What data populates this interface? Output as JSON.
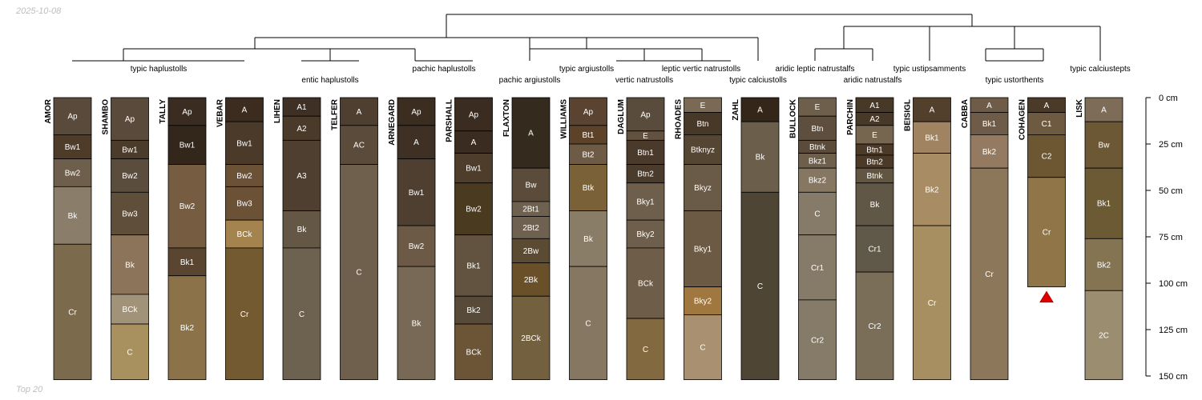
{
  "date_label": "2025-10-08",
  "footer_label": "Top 20",
  "chart_data": {
    "type": "soil-profile-sketch",
    "depth_unit": "cm",
    "depth_range": [
      0,
      150
    ],
    "axis_ticks": [
      {
        "depth": 0,
        "label": "0 cm"
      },
      {
        "depth": 25,
        "label": "25 cm"
      },
      {
        "depth": 50,
        "label": "50 cm"
      },
      {
        "depth": 75,
        "label": "75 cm"
      },
      {
        "depth": 100,
        "label": "100 cm"
      },
      {
        "depth": 125,
        "label": "125 cm"
      },
      {
        "depth": 150,
        "label": "150 cm"
      }
    ],
    "taxa": [
      {
        "label": "typic haplustolls",
        "span": [
          0,
          3
        ]
      },
      {
        "label": "entic haplustolls",
        "span": [
          4,
          5
        ]
      },
      {
        "label": "pachic haplustolls",
        "span": [
          6,
          7
        ]
      },
      {
        "label": "pachic argiustolls",
        "span": [
          8,
          8
        ]
      },
      {
        "label": "typic argiustolls",
        "span": [
          9,
          9
        ]
      },
      {
        "label": "vertic natrustolls",
        "span": [
          10,
          10
        ]
      },
      {
        "label": "leptic vertic natrustolls",
        "span": [
          11,
          11
        ]
      },
      {
        "label": "typic calciustolls",
        "span": [
          12,
          12
        ]
      },
      {
        "label": "aridic leptic natrustalfs",
        "span": [
          13,
          13
        ]
      },
      {
        "label": "aridic natrustalfs",
        "span": [
          14,
          14
        ]
      },
      {
        "label": "typic ustipsamments",
        "span": [
          15,
          15
        ]
      },
      {
        "label": "typic ustorthents",
        "span": [
          16,
          17
        ]
      },
      {
        "label": "typic calciustepts",
        "span": [
          18,
          18
        ]
      }
    ],
    "profiles": [
      {
        "name": "AMOR",
        "horizons": [
          {
            "name": "Ap",
            "top": 0,
            "bottom": 20,
            "color": "#594a3c"
          },
          {
            "name": "Bw1",
            "top": 20,
            "bottom": 33,
            "color": "#4e3c29"
          },
          {
            "name": "Bw2",
            "top": 33,
            "bottom": 48,
            "color": "#6e5f4d"
          },
          {
            "name": "Bk",
            "top": 48,
            "bottom": 79,
            "color": "#8a7d6a"
          },
          {
            "name": "Cr",
            "top": 79,
            "bottom": 152,
            "color": "#7c6a4c"
          }
        ]
      },
      {
        "name": "SHAMBO",
        "horizons": [
          {
            "name": "Ap",
            "top": 0,
            "bottom": 23,
            "color": "#594a3c"
          },
          {
            "name": "Bw1",
            "top": 23,
            "bottom": 33,
            "color": "#4b3b2a"
          },
          {
            "name": "Bw2",
            "top": 33,
            "bottom": 51,
            "color": "#5b4d3e"
          },
          {
            "name": "Bw3",
            "top": 51,
            "bottom": 74,
            "color": "#5e4e3a"
          },
          {
            "name": "Bk",
            "top": 74,
            "bottom": 106,
            "color": "#8b7459"
          },
          {
            "name": "BCk",
            "top": 106,
            "bottom": 122,
            "color": "#a09379"
          },
          {
            "name": "C",
            "top": 122,
            "bottom": 152,
            "color": "#a8915f"
          }
        ]
      },
      {
        "name": "TALLY",
        "horizons": [
          {
            "name": "Ap",
            "top": 0,
            "bottom": 15,
            "color": "#3a2c20"
          },
          {
            "name": "Bw1",
            "top": 15,
            "bottom": 36,
            "color": "#33261a"
          },
          {
            "name": "Bw2",
            "top": 36,
            "bottom": 81,
            "color": "#765c40"
          },
          {
            "name": "Bk1",
            "top": 81,
            "bottom": 96,
            "color": "#5a4530"
          },
          {
            "name": "Bk2",
            "top": 96,
            "bottom": 152,
            "color": "#8c7248"
          }
        ]
      },
      {
        "name": "VEBAR",
        "horizons": [
          {
            "name": "A",
            "top": 0,
            "bottom": 13,
            "color": "#3b2c1f"
          },
          {
            "name": "Bw1",
            "top": 13,
            "bottom": 36,
            "color": "#4b3a2a"
          },
          {
            "name": "Bw2",
            "top": 36,
            "bottom": 48,
            "color": "#6b5135"
          },
          {
            "name": "Bw3",
            "top": 48,
            "bottom": 66,
            "color": "#6b5135"
          },
          {
            "name": "BCk",
            "top": 66,
            "bottom": 81,
            "color": "#a4834f"
          },
          {
            "name": "Cr",
            "top": 81,
            "bottom": 152,
            "color": "#745a30"
          }
        ]
      },
      {
        "name": "LIHEN",
        "horizons": [
          {
            "name": "A1",
            "top": 0,
            "bottom": 10,
            "color": "#3e3024"
          },
          {
            "name": "A2",
            "top": 10,
            "bottom": 23,
            "color": "#4a3a2a"
          },
          {
            "name": "A3",
            "top": 23,
            "bottom": 61,
            "color": "#4e3f30"
          },
          {
            "name": "Bk",
            "top": 61,
            "bottom": 81,
            "color": "#645745"
          },
          {
            "name": "C",
            "top": 81,
            "bottom": 152,
            "color": "#6d6150"
          }
        ]
      },
      {
        "name": "TELFER",
        "horizons": [
          {
            "name": "A",
            "top": 0,
            "bottom": 15,
            "color": "#4e3f30"
          },
          {
            "name": "AC",
            "top": 15,
            "bottom": 36,
            "color": "#5a4b3a"
          },
          {
            "name": "C",
            "top": 36,
            "bottom": 152,
            "color": "#6e604d"
          }
        ]
      },
      {
        "name": "ARNEGARD",
        "horizons": [
          {
            "name": "Ap",
            "top": 0,
            "bottom": 15,
            "color": "#3b2d20"
          },
          {
            "name": "A",
            "top": 15,
            "bottom": 33,
            "color": "#3e3024"
          },
          {
            "name": "Bw1",
            "top": 33,
            "bottom": 69,
            "color": "#4e3f30"
          },
          {
            "name": "Bw2",
            "top": 69,
            "bottom": 91,
            "color": "#6c5a47"
          },
          {
            "name": "Bk",
            "top": 91,
            "bottom": 152,
            "color": "#776955"
          }
        ]
      },
      {
        "name": "PARSHALL",
        "horizons": [
          {
            "name": "Ap",
            "top": 0,
            "bottom": 18,
            "color": "#3a2c20"
          },
          {
            "name": "A",
            "top": 18,
            "bottom": 30,
            "color": "#3a2c20"
          },
          {
            "name": "Bw1",
            "top": 30,
            "bottom": 46,
            "color": "#4e3d2b"
          },
          {
            "name": "Bw2",
            "top": 46,
            "bottom": 74,
            "color": "#4a3a20"
          },
          {
            "name": "Bk1",
            "top": 74,
            "bottom": 107,
            "color": "#615340"
          },
          {
            "name": "Bk2",
            "top": 107,
            "bottom": 122,
            "color": "#574a38"
          },
          {
            "name": "BCk",
            "top": 122,
            "bottom": 152,
            "color": "#6c5537"
          }
        ]
      },
      {
        "name": "FLAXTON",
        "horizons": [
          {
            "name": "A",
            "top": 0,
            "bottom": 38,
            "color": "#342a1e"
          },
          {
            "name": "Bw",
            "top": 38,
            "bottom": 56,
            "color": "#5a4b3a"
          },
          {
            "name": "2Bt1",
            "top": 56,
            "bottom": 64,
            "color": "#6e6150"
          },
          {
            "name": "2Bt2",
            "top": 64,
            "bottom": 76,
            "color": "#6e6150"
          },
          {
            "name": "2Bw",
            "top": 76,
            "bottom": 89,
            "color": "#5a4b32"
          },
          {
            "name": "2Bk",
            "top": 89,
            "bottom": 107,
            "color": "#6a5028"
          },
          {
            "name": "2BCk",
            "top": 107,
            "bottom": 152,
            "color": "#72603f"
          }
        ]
      },
      {
        "name": "WILLIAMS",
        "horizons": [
          {
            "name": "Ap",
            "top": 0,
            "bottom": 15,
            "color": "#5a4330"
          },
          {
            "name": "Bt1",
            "top": 15,
            "bottom": 25,
            "color": "#5c4228"
          },
          {
            "name": "Bt2",
            "top": 25,
            "bottom": 36,
            "color": "#6e5b45"
          },
          {
            "name": "Btk",
            "top": 36,
            "bottom": 61,
            "color": "#7a6138"
          },
          {
            "name": "Bk",
            "top": 61,
            "bottom": 91,
            "color": "#8a7d67"
          },
          {
            "name": "C",
            "top": 91,
            "bottom": 152,
            "color": "#857761"
          }
        ]
      },
      {
        "name": "DAGLUM",
        "horizons": [
          {
            "name": "Ap",
            "top": 0,
            "bottom": 18,
            "color": "#5a4c3c"
          },
          {
            "name": "E",
            "top": 18,
            "bottom": 23,
            "color": "#62513f"
          },
          {
            "name": "Btn1",
            "top": 23,
            "bottom": 36,
            "color": "#493a2c"
          },
          {
            "name": "Btn2",
            "top": 36,
            "bottom": 46,
            "color": "#4a3b2c"
          },
          {
            "name": "Bky1",
            "top": 46,
            "bottom": 66,
            "color": "#6e5f4d"
          },
          {
            "name": "Bky2",
            "top": 66,
            "bottom": 81,
            "color": "#6e5f4d"
          },
          {
            "name": "BCk",
            "top": 81,
            "bottom": 119,
            "color": "#6e5d48"
          },
          {
            "name": "C",
            "top": 119,
            "bottom": 152,
            "color": "#82693f"
          }
        ]
      },
      {
        "name": "RHOADES",
        "horizons": [
          {
            "name": "E",
            "top": 0,
            "bottom": 8,
            "color": "#7a6a55"
          },
          {
            "name": "Btn",
            "top": 8,
            "bottom": 20,
            "color": "#483828"
          },
          {
            "name": "Btknyz",
            "top": 20,
            "bottom": 36,
            "color": "#554533"
          },
          {
            "name": "Bkyz",
            "top": 36,
            "bottom": 61,
            "color": "#6a5a48"
          },
          {
            "name": "Bky1",
            "top": 61,
            "bottom": 102,
            "color": "#6c5a45"
          },
          {
            "name": "Bky2",
            "top": 102,
            "bottom": 117,
            "color": "#a0773f"
          },
          {
            "name": "C",
            "top": 117,
            "bottom": 152,
            "color": "#a89070"
          }
        ]
      },
      {
        "name": "ZAHL",
        "horizons": [
          {
            "name": "A",
            "top": 0,
            "bottom": 13,
            "color": "#342619"
          },
          {
            "name": "Bk",
            "top": 13,
            "bottom": 51,
            "color": "#6b5f4c"
          },
          {
            "name": "C",
            "top": 51,
            "bottom": 152,
            "color": "#4e4535"
          }
        ]
      },
      {
        "name": "BULLOCK",
        "horizons": [
          {
            "name": "E",
            "top": 0,
            "bottom": 10,
            "color": "#6e5f4d"
          },
          {
            "name": "Btn",
            "top": 10,
            "bottom": 23,
            "color": "#5d4e3d"
          },
          {
            "name": "Btnk",
            "top": 23,
            "bottom": 30,
            "color": "#5a4b3a"
          },
          {
            "name": "Bkz1",
            "top": 30,
            "bottom": 38,
            "color": "#6e5f4d"
          },
          {
            "name": "Bkz2",
            "top": 38,
            "bottom": 51,
            "color": "#857761"
          },
          {
            "name": "C",
            "top": 51,
            "bottom": 74,
            "color": "#857b68"
          },
          {
            "name": "Cr1",
            "top": 74,
            "bottom": 109,
            "color": "#857b68"
          },
          {
            "name": "Cr2",
            "top": 109,
            "bottom": 152,
            "color": "#857b68"
          }
        ]
      },
      {
        "name": "PARCHIN",
        "horizons": [
          {
            "name": "A1",
            "top": 0,
            "bottom": 8,
            "color": "#483828"
          },
          {
            "name": "A2",
            "top": 8,
            "bottom": 15,
            "color": "#483828"
          },
          {
            "name": "E",
            "top": 15,
            "bottom": 25,
            "color": "#76654f"
          },
          {
            "name": "Btn1",
            "top": 25,
            "bottom": 31,
            "color": "#4b3a28"
          },
          {
            "name": "Btn2",
            "top": 31,
            "bottom": 38,
            "color": "#4b3a28"
          },
          {
            "name": "Btnk",
            "top": 38,
            "bottom": 46,
            "color": "#625642"
          },
          {
            "name": "Bk",
            "top": 46,
            "bottom": 69,
            "color": "#615746"
          },
          {
            "name": "Cr1",
            "top": 69,
            "bottom": 94,
            "color": "#605848"
          },
          {
            "name": "Cr2",
            "top": 94,
            "bottom": 152,
            "color": "#7b6e58"
          }
        ]
      },
      {
        "name": "BEISIGL",
        "horizons": [
          {
            "name": "A",
            "top": 0,
            "bottom": 13,
            "color": "#523f2c"
          },
          {
            "name": "Bk1",
            "top": 13,
            "bottom": 30,
            "color": "#a08461"
          },
          {
            "name": "Bk2",
            "top": 30,
            "bottom": 69,
            "color": "#a88c63"
          },
          {
            "name": "Cr",
            "top": 69,
            "bottom": 152,
            "color": "#a88f61"
          }
        ]
      },
      {
        "name": "CABBA",
        "horizons": [
          {
            "name": "A",
            "top": 0,
            "bottom": 8,
            "color": "#6e5c48"
          },
          {
            "name": "Bk1",
            "top": 8,
            "bottom": 20,
            "color": "#6e5c48"
          },
          {
            "name": "Bk2",
            "top": 20,
            "bottom": 38,
            "color": "#937a60"
          },
          {
            "name": "Cr",
            "top": 38,
            "bottom": 152,
            "color": "#8d775b"
          }
        ]
      },
      {
        "name": "COHAGEN",
        "horizons": [
          {
            "name": "A",
            "top": 0,
            "bottom": 8,
            "color": "#4c3a28"
          },
          {
            "name": "C1",
            "top": 8,
            "bottom": 20,
            "color": "#6e5a40"
          },
          {
            "name": "C2",
            "top": 20,
            "bottom": 43,
            "color": "#6d5632"
          },
          {
            "name": "Cr",
            "top": 43,
            "bottom": 102,
            "color": "#8f7548"
          }
        ]
      },
      {
        "name": "LISK",
        "horizons": [
          {
            "name": "A",
            "top": 0,
            "bottom": 13,
            "color": "#7d6c57"
          },
          {
            "name": "Bw",
            "top": 13,
            "bottom": 38,
            "color": "#6c5835"
          },
          {
            "name": "Bk1",
            "top": 38,
            "bottom": 76,
            "color": "#6b5a33"
          },
          {
            "name": "Bk2",
            "top": 76,
            "bottom": 104,
            "color": "#857452"
          },
          {
            "name": "2C",
            "top": 104,
            "bottom": 152,
            "color": "#9b8e70"
          }
        ]
      }
    ],
    "truncated_profiles": [
      "COHAGEN"
    ]
  }
}
